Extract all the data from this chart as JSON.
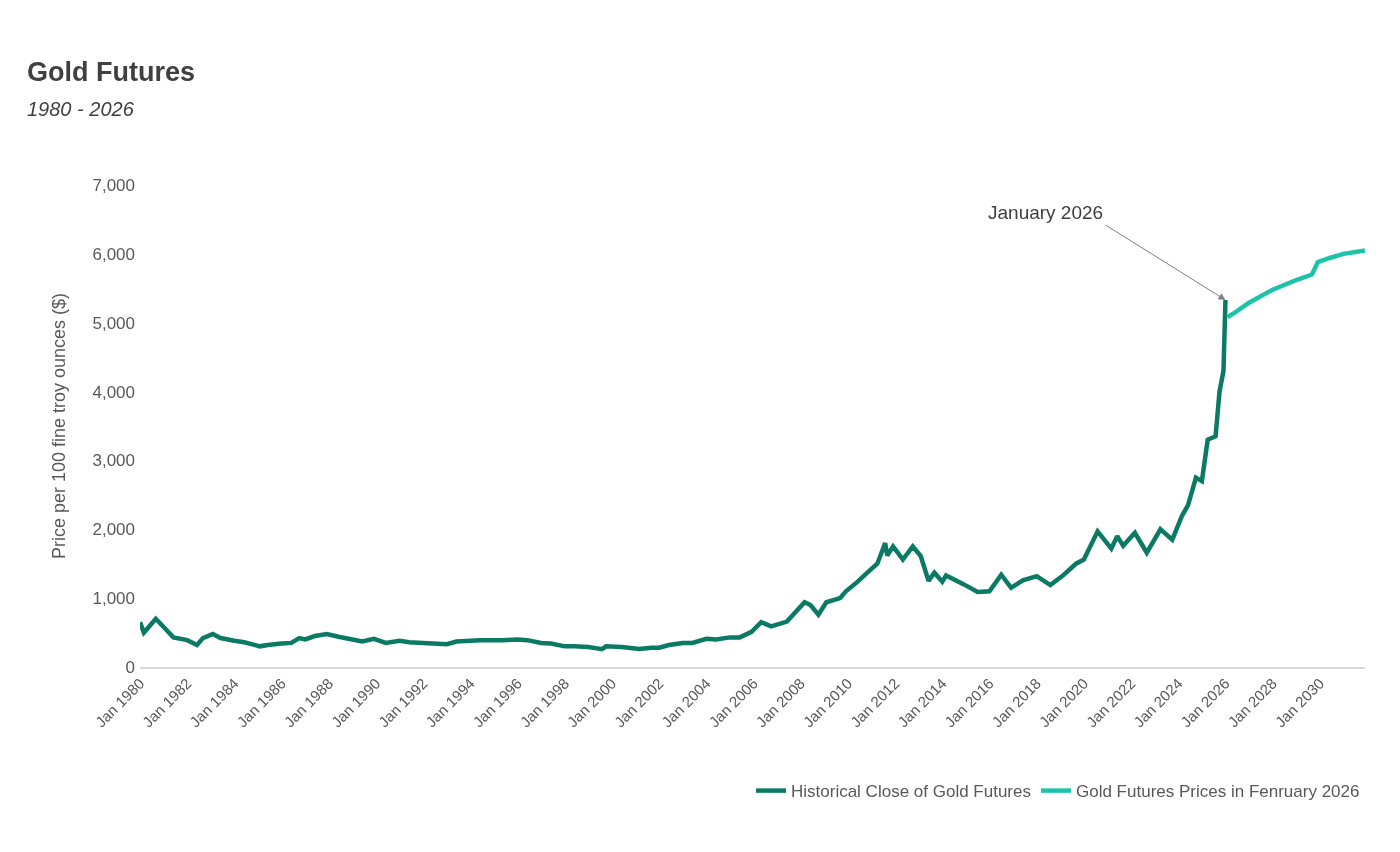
{
  "chart_data": {
    "type": "line",
    "title": "Gold Futures",
    "subtitle": "1980 - 2026",
    "ylabel": "Price per 100 fine troy ounces ($)",
    "xlim": [
      "1980-01",
      "2031-12"
    ],
    "xticks": [
      {
        "value": "1980-01",
        "label": "Jan 1980"
      },
      {
        "value": "1982-01",
        "label": "Jan 1982"
      },
      {
        "value": "1984-01",
        "label": "Jan 1984"
      },
      {
        "value": "1986-01",
        "label": "Jan 1986"
      },
      {
        "value": "1988-01",
        "label": "Jan 1988"
      },
      {
        "value": "1990-01",
        "label": "Jan 1990"
      },
      {
        "value": "1992-01",
        "label": "Jan 1992"
      },
      {
        "value": "1994-01",
        "label": "Jan 1994"
      },
      {
        "value": "1996-01",
        "label": "Jan 1996"
      },
      {
        "value": "1998-01",
        "label": "Jan 1998"
      },
      {
        "value": "2000-01",
        "label": "Jan 2000"
      },
      {
        "value": "2002-01",
        "label": "Jan 2002"
      },
      {
        "value": "2004-01",
        "label": "Jan 2004"
      },
      {
        "value": "2006-01",
        "label": "Jan 2006"
      },
      {
        "value": "2008-01",
        "label": "Jan 2008"
      },
      {
        "value": "2010-01",
        "label": "Jan 2010"
      },
      {
        "value": "2012-01",
        "label": "Jan 2012"
      },
      {
        "value": "2014-01",
        "label": "Jan 2014"
      },
      {
        "value": "2016-01",
        "label": "Jan 2016"
      },
      {
        "value": "2018-01",
        "label": "Jan 2018"
      },
      {
        "value": "2020-01",
        "label": "Jan 2020"
      },
      {
        "value": "2022-01",
        "label": "Jan 2022"
      },
      {
        "value": "2024-01",
        "label": "Jan 2024"
      },
      {
        "value": "2026-01",
        "label": "Jan 2026"
      },
      {
        "value": "2028-01",
        "label": "Jan 2028"
      },
      {
        "value": "2030-01",
        "label": "Jan 2030"
      }
    ],
    "ylim": [
      0,
      7000
    ],
    "yticks": [
      {
        "value": 0,
        "label": "0"
      },
      {
        "value": 1000,
        "label": "1,000"
      },
      {
        "value": 2000,
        "label": "2,000"
      },
      {
        "value": 3000,
        "label": "3,000"
      },
      {
        "value": 4000,
        "label": "4,000"
      },
      {
        "value": 5000,
        "label": "5,000"
      },
      {
        "value": 6000,
        "label": "6,000"
      },
      {
        "value": 7000,
        "label": "7,000"
      }
    ],
    "legend": "bottom right",
    "marker": "none",
    "line_style": "solid",
    "annotations": [
      {
        "text": "January 2026",
        "x": "2026-01",
        "y": 5330
      }
    ],
    "series": [
      {
        "name": "Historical Close of Gold Futures",
        "color": "#0b7a64",
        "x": [
          "1980-01",
          "1980-03",
          "1980-06",
          "1980-09",
          "1981-01",
          "1981-06",
          "1982-01",
          "1982-06",
          "1982-09",
          "1983-02",
          "1983-06",
          "1984-01",
          "1984-06",
          "1985-02",
          "1985-06",
          "1986-01",
          "1986-06",
          "1986-10",
          "1987-01",
          "1987-06",
          "1987-12",
          "1988-06",
          "1989-01",
          "1989-06",
          "1989-12",
          "1990-06",
          "1991-01",
          "1991-06",
          "1992-01",
          "1992-06",
          "1993-01",
          "1993-06",
          "1994-01",
          "1994-06",
          "1995-06",
          "1996-01",
          "1996-06",
          "1997-01",
          "1997-06",
          "1998-01",
          "1998-06",
          "1999-01",
          "1999-08",
          "1999-10",
          "2000-06",
          "2001-03",
          "2001-09",
          "2002-01",
          "2002-06",
          "2003-01",
          "2003-06",
          "2004-01",
          "2004-06",
          "2005-01",
          "2005-06",
          "2005-12",
          "2006-05",
          "2006-10",
          "2007-06",
          "2008-03",
          "2008-06",
          "2008-10",
          "2009-02",
          "2009-09",
          "2009-12",
          "2010-06",
          "2010-12",
          "2011-04",
          "2011-08",
          "2011-09",
          "2011-12",
          "2012-05",
          "2012-10",
          "2013-02",
          "2013-06",
          "2013-09",
          "2014-01",
          "2014-03",
          "2014-12",
          "2015-07",
          "2016-01",
          "2016-07",
          "2016-12",
          "2017-06",
          "2018-01",
          "2018-08",
          "2019-02",
          "2019-09",
          "2020-01",
          "2020-08",
          "2021-03",
          "2021-06",
          "2021-09",
          "2022-03",
          "2022-09",
          "2023-04",
          "2023-10",
          "2024-03",
          "2024-06",
          "2024-10",
          "2025-01",
          "2025-04",
          "2025-08",
          "2025-10",
          "2025-12",
          "2026-01"
        ],
        "values": [
          650,
          500,
          600,
          700,
          580,
          430,
          390,
          320,
          420,
          480,
          420,
          380,
          360,
          300,
          320,
          340,
          350,
          420,
          400,
          450,
          480,
          440,
          400,
          370,
          410,
          350,
          380,
          360,
          350,
          340,
          330,
          370,
          380,
          390,
          390,
          400,
          390,
          350,
          340,
          300,
          300,
          290,
          260,
          300,
          290,
          260,
          280,
          280,
          320,
          350,
          350,
          410,
          400,
          430,
          430,
          510,
          650,
          590,
          660,
          940,
          900,
          760,
          940,
          1000,
          1100,
          1240,
          1400,
          1500,
          1800,
          1620,
          1750,
          1560,
          1750,
          1610,
          1250,
          1370,
          1240,
          1330,
          1200,
          1090,
          1100,
          1340,
          1150,
          1260,
          1320,
          1190,
          1320,
          1500,
          1560,
          1970,
          1720,
          1900,
          1760,
          1950,
          1660,
          2000,
          1850,
          2200,
          2350,
          2750,
          2700,
          3300,
          3350,
          4000,
          4300,
          5330
        ]
      },
      {
        "name": "Gold Futures Prices in Fenruary 2026",
        "color": "#1cc3a8",
        "x": [
          "2026-02",
          "2026-06",
          "2027-01",
          "2028-01",
          "2029-01",
          "2029-09",
          "2029-12",
          "2030-06",
          "2031-01",
          "2031-12"
        ],
        "values": [
          5080,
          5150,
          5290,
          5480,
          5620,
          5700,
          5880,
          5940,
          6000,
          6050
        ]
      }
    ]
  }
}
